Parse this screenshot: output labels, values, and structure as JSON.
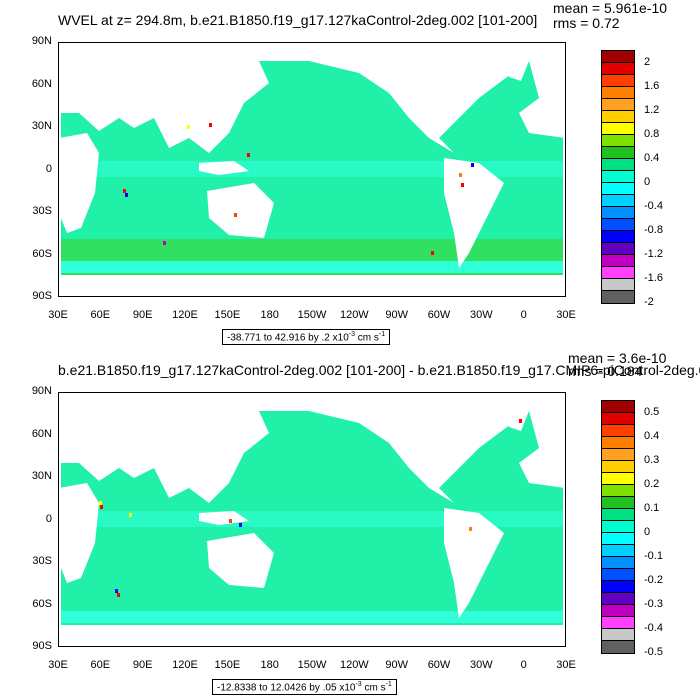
{
  "top": {
    "title": "WVEL at z= 294.8m, b.e21.B1850.f19_g17.127kaControl-2deg.002 [101-200]",
    "mean": "mean = 5.961e-10",
    "rms": "rms = 0.72",
    "range_text": "-38.771 to 42.916 by .2 x10",
    "range_exp": "-3",
    "range_unit": " cm s",
    "range_unit_exp": "-1",
    "colorbar_labels": [
      "2",
      "1.6",
      "1.2",
      "0.8",
      "0.4",
      "0",
      "-0.4",
      "-0.8",
      "-1.2",
      "-1.6",
      "-2"
    ],
    "colorbar_colors": [
      "#a00000",
      "#e00000",
      "#ff4000",
      "#ff8000",
      "#ffa020",
      "#ffd000",
      "#ffff00",
      "#80e000",
      "#20c020",
      "#00e080",
      "#00ffd0",
      "#00ffff",
      "#00d0ff",
      "#0090ff",
      "#0050ff",
      "#0000ff",
      "#6000c0",
      "#c000c0",
      "#ff40ff",
      "#c8c8c8",
      "#606060"
    ]
  },
  "bottom": {
    "title": "b.e21.B1850.f19_g17.127kaControl-2deg.002 [101-200] - b.e21.B1850.f19_g17.CMIP6-piControl-2deg.0",
    "mean": "mean = 3.6e-10",
    "rms": "rms = 0.184",
    "range_text": "-12.8338 to 12.0426 by .05 x10",
    "range_exp": "-3",
    "range_unit": " cm s",
    "range_unit_exp": "-1",
    "colorbar_labels": [
      "0.5",
      "0.4",
      "0.3",
      "0.2",
      "0.1",
      "0",
      "-0.1",
      "-0.2",
      "-0.3",
      "-0.4",
      "-0.5"
    ],
    "colorbar_colors": [
      "#a00000",
      "#e00000",
      "#ff4000",
      "#ff8000",
      "#ffa020",
      "#ffd000",
      "#ffff00",
      "#80e000",
      "#20c020",
      "#00e080",
      "#00ffd0",
      "#00ffff",
      "#00d0ff",
      "#0090ff",
      "#0050ff",
      "#0000ff",
      "#6000c0",
      "#c000c0",
      "#ff40ff",
      "#c8c8c8",
      "#606060"
    ]
  },
  "axes": {
    "lat_labels": [
      "90N",
      "60N",
      "30N",
      "0",
      "30S",
      "60S",
      "90S"
    ],
    "lon_labels": [
      "30E",
      "60E",
      "90E",
      "120E",
      "150E",
      "180",
      "150W",
      "120W",
      "90W",
      "60W",
      "30W",
      "0",
      "30E"
    ]
  },
  "colors": {
    "ocean_base": "#20f0a8",
    "ocean_light": "#30ffd8",
    "ocean_green": "#30e060",
    "land": "#ffffff"
  }
}
